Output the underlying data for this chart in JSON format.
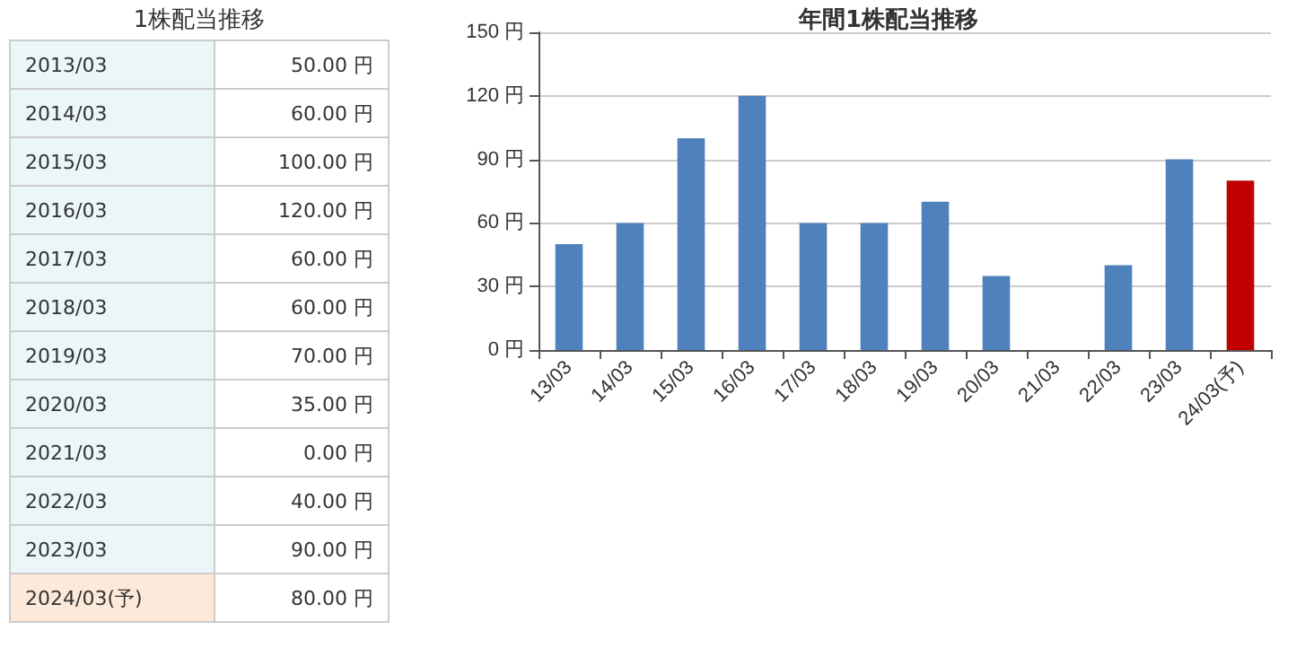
{
  "chart_data": [
    {
      "type": "other",
      "title": "1株配当推移",
      "categories": [
        "2013/03",
        "2014/03",
        "2015/03",
        "2016/03",
        "2017/03",
        "2018/03",
        "2019/03",
        "2020/03",
        "2021/03",
        "2022/03",
        "2023/03",
        "2024/03(予)"
      ],
      "value_labels": [
        "50.00 円",
        "60.00 円",
        "100.00 円",
        "120.00 円",
        "60.00 円",
        "60.00 円",
        "70.00 円",
        "35.00 円",
        "0.00 円",
        "40.00 円",
        "90.00 円",
        "80.00 円"
      ]
    },
    {
      "type": "bar",
      "title": "年間1株配当推移",
      "categories": [
        "13/03",
        "14/03",
        "15/03",
        "16/03",
        "17/03",
        "18/03",
        "19/03",
        "20/03",
        "21/03",
        "22/03",
        "23/03",
        "24/03(予)"
      ],
      "values": [
        50,
        60,
        100,
        120,
        60,
        60,
        70,
        35,
        0,
        40,
        90,
        80
      ],
      "colors": [
        "#4f81bd",
        "#4f81bd",
        "#4f81bd",
        "#4f81bd",
        "#4f81bd",
        "#4f81bd",
        "#4f81bd",
        "#4f81bd",
        "#4f81bd",
        "#4f81bd",
        "#4f81bd",
        "#c00000"
      ],
      "ylim": [
        0,
        150
      ],
      "yticks": [
        {
          "value": 0,
          "label": "0 円"
        },
        {
          "value": 30,
          "label": "30 円"
        },
        {
          "value": 60,
          "label": "60 円"
        },
        {
          "value": 90,
          "label": "90 円"
        },
        {
          "value": 120,
          "label": "120 円"
        },
        {
          "value": 150,
          "label": "150 円"
        }
      ],
      "grid": "y"
    }
  ]
}
